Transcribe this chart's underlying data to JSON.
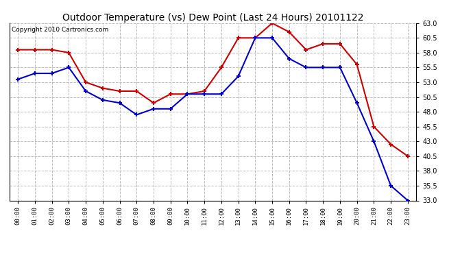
{
  "title": "Outdoor Temperature (vs) Dew Point (Last 24 Hours) 20101122",
  "copyright": "Copyright 2010 Cartronics.com",
  "x_labels": [
    "00:00",
    "01:00",
    "02:00",
    "03:00",
    "04:00",
    "05:00",
    "06:00",
    "07:00",
    "08:00",
    "09:00",
    "10:00",
    "11:00",
    "12:00",
    "13:00",
    "14:00",
    "15:00",
    "16:00",
    "17:00",
    "18:00",
    "19:00",
    "20:00",
    "21:00",
    "22:00",
    "23:00"
  ],
  "temp_red": [
    58.5,
    58.5,
    58.5,
    58.0,
    53.0,
    52.0,
    51.5,
    51.5,
    49.5,
    51.0,
    51.0,
    51.5,
    55.5,
    60.5,
    60.5,
    63.0,
    61.5,
    58.5,
    59.5,
    59.5,
    56.0,
    45.5,
    42.5,
    40.5
  ],
  "temp_blue": [
    53.5,
    54.5,
    54.5,
    55.5,
    51.5,
    50.0,
    49.5,
    47.5,
    48.5,
    48.5,
    51.0,
    51.0,
    51.0,
    54.0,
    60.5,
    60.5,
    57.0,
    55.5,
    55.5,
    55.5,
    49.5,
    43.0,
    35.5,
    33.0
  ],
  "ylim": [
    33.0,
    63.0
  ],
  "yticks": [
    33.0,
    35.5,
    38.0,
    40.5,
    43.0,
    45.5,
    48.0,
    50.5,
    53.0,
    55.5,
    58.0,
    60.5,
    63.0
  ],
  "bg_color": "#ffffff",
  "plot_bg": "#ffffff",
  "grid_color": "#bbbbbb",
  "red_color": "#cc0000",
  "blue_color": "#0000cc",
  "title_fontsize": 10,
  "copyright_fontsize": 6.5
}
